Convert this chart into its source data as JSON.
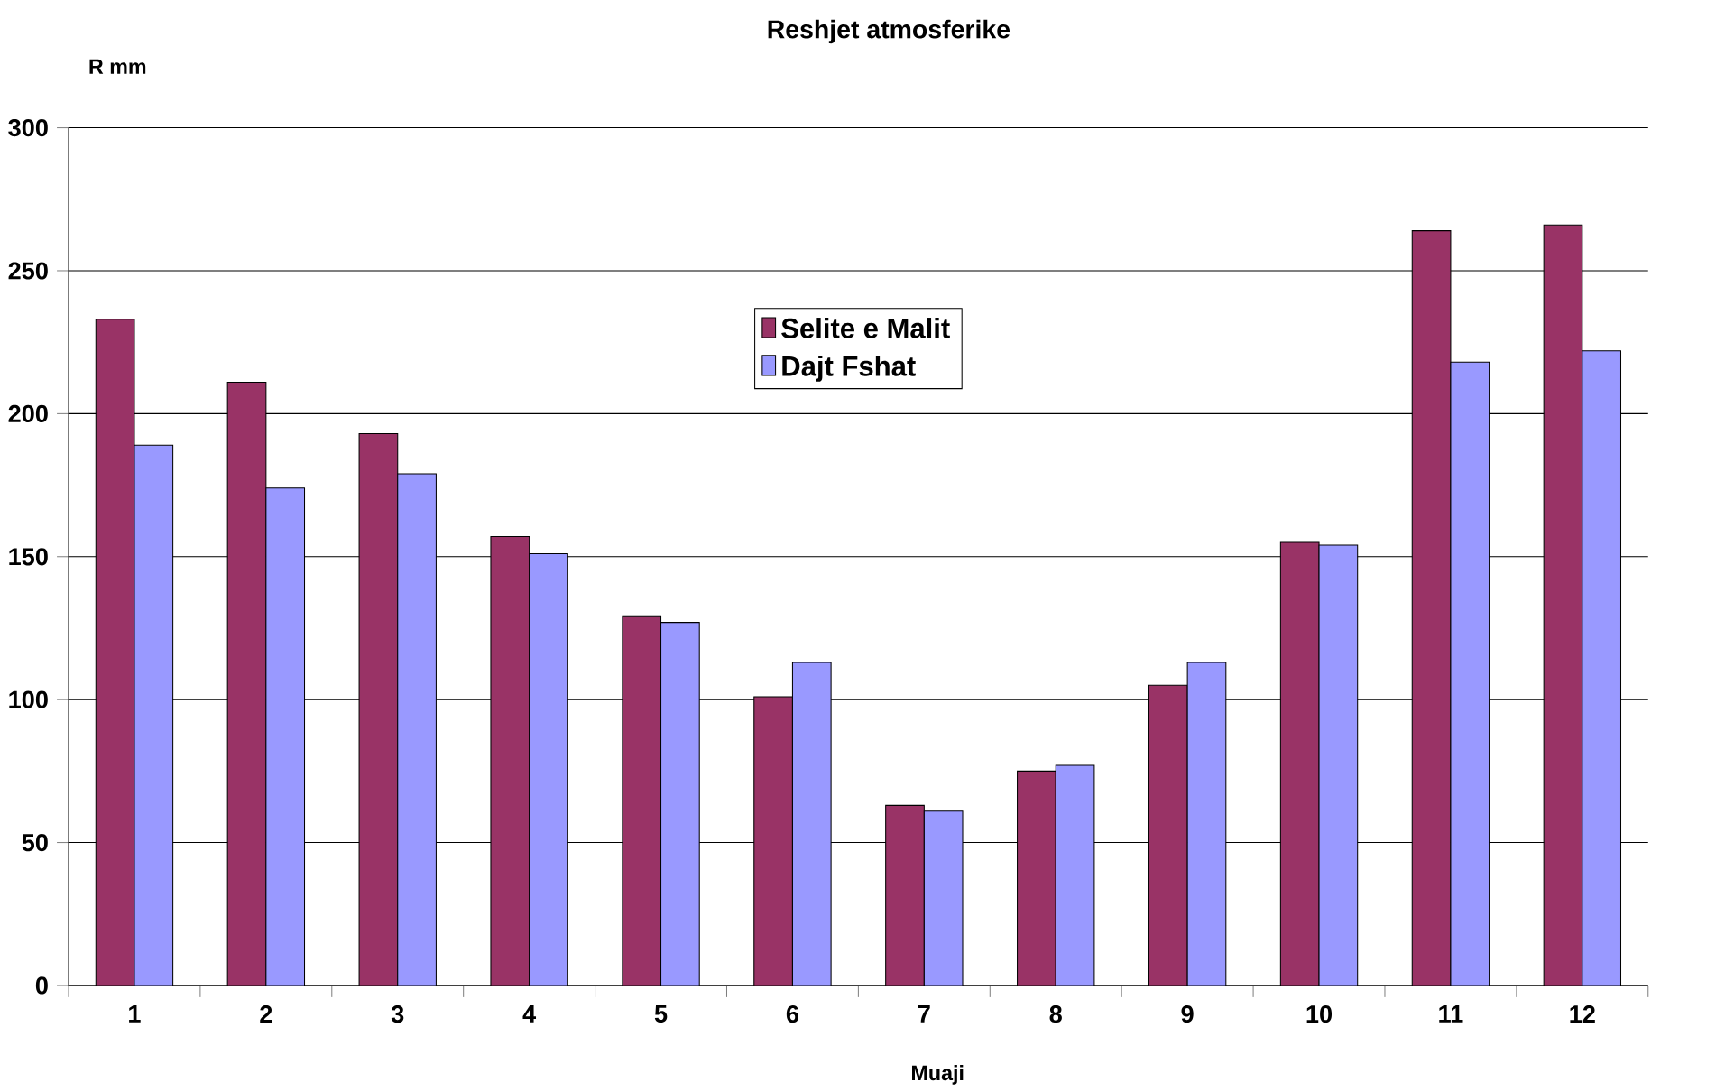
{
  "chart_data": {
    "type": "bar",
    "title": "Reshjet atmosferike",
    "xlabel": "Muaji",
    "ylabel": "R mm",
    "categories": [
      "1",
      "2",
      "3",
      "4",
      "5",
      "6",
      "7",
      "8",
      "9",
      "10",
      "11",
      "12"
    ],
    "series": [
      {
        "name": "Selite e Malit",
        "color": "#993366",
        "values": [
          233,
          211,
          193,
          157,
          129,
          101,
          63,
          75,
          105,
          155,
          264,
          266
        ]
      },
      {
        "name": "Dajt Fshat",
        "color": "#9999ff",
        "values": [
          189,
          174,
          179,
          151,
          127,
          113,
          61,
          77,
          113,
          154,
          218,
          222
        ]
      }
    ],
    "ylim": [
      0,
      300
    ],
    "yticks": [
      0,
      50,
      100,
      150,
      200,
      250,
      300
    ],
    "grid": "y",
    "legend": "top"
  }
}
